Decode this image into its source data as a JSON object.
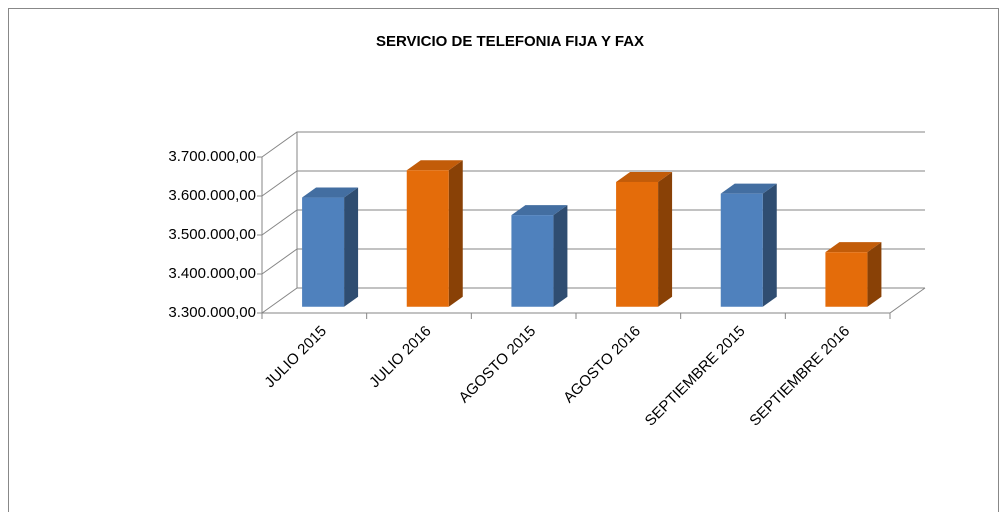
{
  "chart_data": {
    "type": "bar3d",
    "title": "SERVICIO DE TELEFONIA FIJA Y FAX",
    "categories": [
      "JULIO 2015",
      "JULIO 2016",
      "AGOSTO 2015",
      "AGOSTO 2016",
      "SEPTIEMBRE 2015",
      "SEPTIEMBRE 2016"
    ],
    "values": [
      3580000,
      3650000,
      3535000,
      3620000,
      3590000,
      3440000
    ],
    "colors": [
      "#4f81bd",
      "#e46c0a",
      "#4f81bd",
      "#e46c0a",
      "#4f81bd",
      "#e46c0a"
    ],
    "ylim": [
      3300000,
      3700000
    ],
    "yticks": [
      {
        "value": 3300000,
        "label": "3.300.000,00"
      },
      {
        "value": 3400000,
        "label": "3.400.000,00"
      },
      {
        "value": 3500000,
        "label": "3.500.000,00"
      },
      {
        "value": 3600000,
        "label": "3.600.000,00"
      },
      {
        "value": 3700000,
        "label": "3.700.000,00"
      }
    ],
    "grid": true
  }
}
